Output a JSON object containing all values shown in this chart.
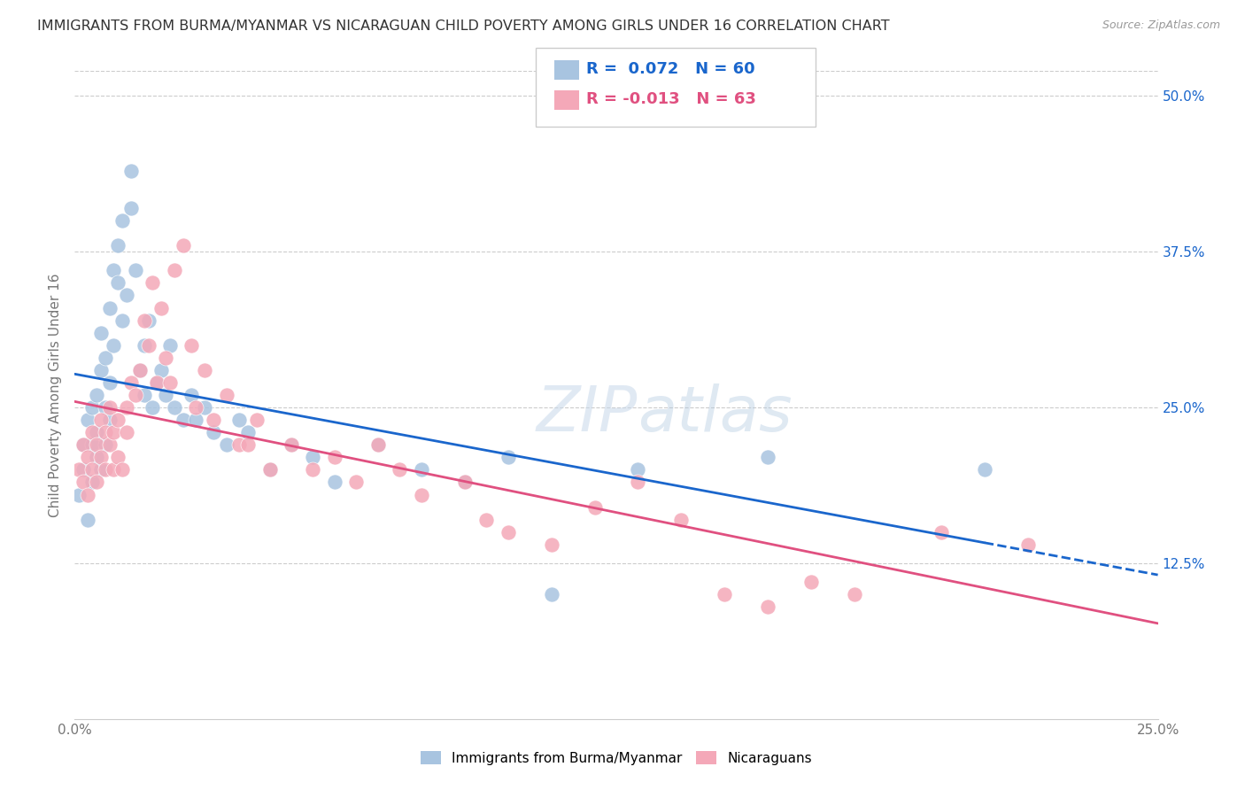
{
  "title": "IMMIGRANTS FROM BURMA/MYANMAR VS NICARAGUAN CHILD POVERTY AMONG GIRLS UNDER 16 CORRELATION CHART",
  "source": "Source: ZipAtlas.com",
  "ylabel": "Child Poverty Among Girls Under 16",
  "xlim": [
    0.0,
    0.25
  ],
  "ylim": [
    0.0,
    0.52
  ],
  "xticks": [
    0.0,
    0.05,
    0.1,
    0.15,
    0.2,
    0.25
  ],
  "xticklabels": [
    "0.0%",
    "",
    "",
    "",
    "",
    "25.0%"
  ],
  "ytick_positions": [
    0.125,
    0.25,
    0.375,
    0.5
  ],
  "ytick_labels": [
    "12.5%",
    "25.0%",
    "37.5%",
    "50.0%"
  ],
  "series1_color": "#a8c4e0",
  "series2_color": "#f4a8b8",
  "line1_color": "#1a66cc",
  "line2_color": "#e05080",
  "R1": 0.072,
  "N1": 60,
  "R2": -0.013,
  "N2": 63,
  "legend1": "Immigrants from Burma/Myanmar",
  "legend2": "Nicaraguans",
  "series1_x": [
    0.001,
    0.002,
    0.002,
    0.003,
    0.003,
    0.004,
    0.004,
    0.004,
    0.005,
    0.005,
    0.005,
    0.006,
    0.006,
    0.006,
    0.007,
    0.007,
    0.007,
    0.008,
    0.008,
    0.008,
    0.009,
    0.009,
    0.01,
    0.01,
    0.011,
    0.011,
    0.012,
    0.013,
    0.013,
    0.014,
    0.015,
    0.016,
    0.016,
    0.017,
    0.018,
    0.019,
    0.02,
    0.021,
    0.022,
    0.023,
    0.025,
    0.027,
    0.028,
    0.03,
    0.032,
    0.035,
    0.038,
    0.04,
    0.045,
    0.05,
    0.055,
    0.06,
    0.07,
    0.08,
    0.09,
    0.1,
    0.11,
    0.13,
    0.16,
    0.21
  ],
  "series1_y": [
    0.18,
    0.2,
    0.22,
    0.16,
    0.24,
    0.19,
    0.22,
    0.25,
    0.21,
    0.23,
    0.26,
    0.2,
    0.28,
    0.31,
    0.22,
    0.25,
    0.29,
    0.24,
    0.27,
    0.33,
    0.3,
    0.36,
    0.35,
    0.38,
    0.32,
    0.4,
    0.34,
    0.41,
    0.44,
    0.36,
    0.28,
    0.26,
    0.3,
    0.32,
    0.25,
    0.27,
    0.28,
    0.26,
    0.3,
    0.25,
    0.24,
    0.26,
    0.24,
    0.25,
    0.23,
    0.22,
    0.24,
    0.23,
    0.2,
    0.22,
    0.21,
    0.19,
    0.22,
    0.2,
    0.19,
    0.21,
    0.1,
    0.2,
    0.21,
    0.2
  ],
  "series2_x": [
    0.001,
    0.002,
    0.002,
    0.003,
    0.003,
    0.004,
    0.004,
    0.005,
    0.005,
    0.006,
    0.006,
    0.007,
    0.007,
    0.008,
    0.008,
    0.009,
    0.009,
    0.01,
    0.01,
    0.011,
    0.012,
    0.012,
    0.013,
    0.014,
    0.015,
    0.016,
    0.017,
    0.018,
    0.019,
    0.02,
    0.021,
    0.022,
    0.023,
    0.025,
    0.027,
    0.028,
    0.03,
    0.032,
    0.035,
    0.038,
    0.04,
    0.042,
    0.045,
    0.05,
    0.055,
    0.06,
    0.065,
    0.07,
    0.075,
    0.08,
    0.09,
    0.095,
    0.1,
    0.11,
    0.12,
    0.13,
    0.14,
    0.15,
    0.16,
    0.17,
    0.18,
    0.2,
    0.22
  ],
  "series2_y": [
    0.2,
    0.19,
    0.22,
    0.18,
    0.21,
    0.2,
    0.23,
    0.19,
    0.22,
    0.21,
    0.24,
    0.2,
    0.23,
    0.22,
    0.25,
    0.2,
    0.23,
    0.24,
    0.21,
    0.2,
    0.23,
    0.25,
    0.27,
    0.26,
    0.28,
    0.32,
    0.3,
    0.35,
    0.27,
    0.33,
    0.29,
    0.27,
    0.36,
    0.38,
    0.3,
    0.25,
    0.28,
    0.24,
    0.26,
    0.22,
    0.22,
    0.24,
    0.2,
    0.22,
    0.2,
    0.21,
    0.19,
    0.22,
    0.2,
    0.18,
    0.19,
    0.16,
    0.15,
    0.14,
    0.17,
    0.19,
    0.16,
    0.1,
    0.09,
    0.11,
    0.1,
    0.15,
    0.14
  ]
}
